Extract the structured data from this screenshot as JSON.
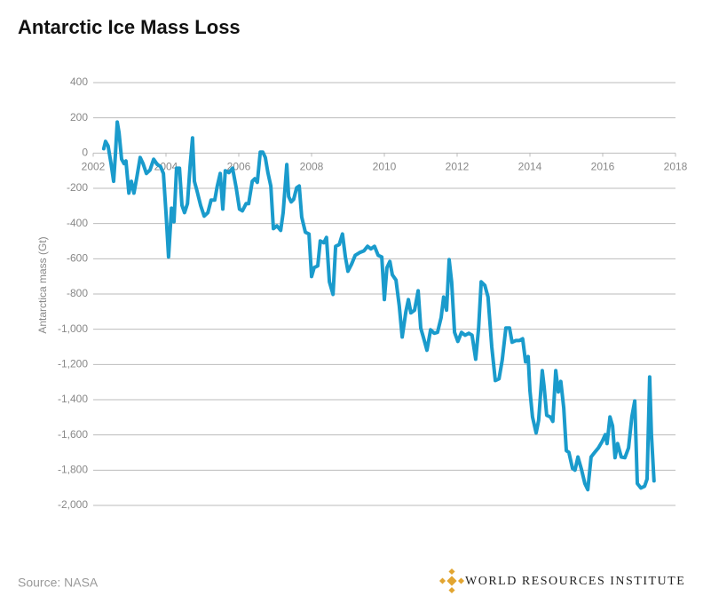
{
  "chart_data": {
    "type": "line",
    "title": "Antarctic Ice Mass Loss",
    "y_label": "Antarctica mass (Gt)",
    "source": "Source: NASA",
    "publisher": "WORLD RESOURCES INSTITUTE",
    "xlim": [
      2002,
      2018
    ],
    "xticks": [
      2002,
      2004,
      2006,
      2008,
      2010,
      2012,
      2014,
      2016,
      2018
    ],
    "ylim": [
      -2000,
      400
    ],
    "yticks": [
      400,
      200,
      0,
      -200,
      -400,
      -600,
      -800,
      {
        "value": -1000,
        "label": "-1,000"
      },
      {
        "value": -1200,
        "label": "-1,200"
      },
      {
        "value": -1400,
        "label": "-1,400"
      },
      {
        "value": -1600,
        "label": "-1,600"
      },
      {
        "value": -1800,
        "label": "-1,800"
      },
      {
        "value": -2000,
        "label": "-2,000"
      }
    ],
    "grid": true,
    "series": [
      {
        "name": "Antarctica mass",
        "color": "#1a9bcc",
        "x": [
          2002.29,
          2002.34,
          2002.41,
          2002.49,
          2002.56,
          2002.61,
          2002.66,
          2002.71,
          2002.78,
          2002.85,
          2002.9,
          2002.98,
          2003.05,
          2003.12,
          2003.2,
          2003.29,
          2003.37,
          2003.46,
          2003.56,
          2003.66,
          2003.76,
          2003.85,
          2003.93,
          2004.0,
          2004.07,
          2004.15,
          2004.22,
          2004.29,
          2004.37,
          2004.44,
          2004.51,
          2004.59,
          2004.66,
          2004.73,
          2004.78,
          2004.85,
          2004.95,
          2005.05,
          2005.15,
          2005.24,
          2005.34,
          2005.41,
          2005.49,
          2005.56,
          2005.63,
          2005.73,
          2005.83,
          2005.93,
          2006.02,
          2006.1,
          2006.2,
          2006.27,
          2006.37,
          2006.44,
          2006.51,
          2006.59,
          2006.66,
          2006.73,
          2006.8,
          2006.88,
          2006.95,
          2007.05,
          2007.15,
          2007.22,
          2007.32,
          2007.37,
          2007.44,
          2007.51,
          2007.59,
          2007.66,
          2007.73,
          2007.83,
          2007.93,
          2008.0,
          2008.07,
          2008.17,
          2008.24,
          2008.34,
          2008.41,
          2008.49,
          2008.59,
          2008.66,
          2008.76,
          2008.85,
          2008.93,
          2009.0,
          2009.1,
          2009.2,
          2009.32,
          2009.44,
          2009.54,
          2009.63,
          2009.73,
          2009.83,
          2009.93,
          2010.0,
          2010.07,
          2010.15,
          2010.22,
          2010.32,
          2010.41,
          2010.49,
          2010.59,
          2010.66,
          2010.73,
          2010.83,
          2010.93,
          2011.0,
          2011.07,
          2011.17,
          2011.27,
          2011.37,
          2011.46,
          2011.56,
          2011.63,
          2011.71,
          2011.78,
          2011.85,
          2011.93,
          2012.02,
          2012.12,
          2012.22,
          2012.32,
          2012.41,
          2012.51,
          2012.59,
          2012.66,
          2012.76,
          2012.85,
          2012.95,
          2013.05,
          2013.15,
          2013.24,
          2013.34,
          2013.44,
          2013.51,
          2013.61,
          2013.71,
          2013.8,
          2013.88,
          2013.95,
          2014.0,
          2014.07,
          2014.17,
          2014.24,
          2014.34,
          2014.39,
          2014.46,
          2014.56,
          2014.63,
          2014.71,
          2014.78,
          2014.85,
          2014.93,
          2015.0,
          2015.07,
          2015.17,
          2015.24,
          2015.32,
          2015.41,
          2015.51,
          2015.59,
          2015.68,
          2015.78,
          2015.88,
          2015.98,
          2016.07,
          2016.12,
          2016.2,
          2016.27,
          2016.34,
          2016.41,
          2016.51,
          2016.61,
          2016.71,
          2016.8,
          2016.88,
          2016.95,
          2017.05,
          2017.15,
          2017.22,
          2017.29,
          2017.34,
          2017.41
        ],
        "values": [
          25,
          66,
          40,
          -60,
          -160,
          -10,
          176,
          116,
          -35,
          -60,
          -45,
          -227,
          -160,
          -227,
          -136,
          -25,
          -60,
          -116,
          -96,
          -35,
          -65,
          -76,
          -116,
          -338,
          -590,
          -313,
          -390,
          -86,
          -86,
          -297,
          -338,
          -287,
          -76,
          86,
          -160,
          -212,
          -297,
          -358,
          -338,
          -267,
          -267,
          -187,
          -116,
          -318,
          -100,
          -111,
          -86,
          -197,
          -318,
          -328,
          -287,
          -287,
          -160,
          -146,
          -166,
          5,
          5,
          -25,
          -111,
          -187,
          -429,
          -413,
          -439,
          -338,
          -65,
          -247,
          -277,
          -262,
          -197,
          -187,
          -363,
          -449,
          -459,
          -701,
          -650,
          -640,
          -499,
          -509,
          -479,
          -731,
          -802,
          -529,
          -519,
          -459,
          -590,
          -671,
          -630,
          -580,
          -565,
          -555,
          -529,
          -544,
          -529,
          -580,
          -590,
          -832,
          -650,
          -615,
          -691,
          -721,
          -867,
          -1044,
          -902,
          -832,
          -907,
          -892,
          -782,
          -993,
          -1044,
          -1119,
          -1003,
          -1023,
          -1018,
          -933,
          -817,
          -892,
          -605,
          -731,
          -1018,
          -1069,
          -1018,
          -1034,
          -1023,
          -1034,
          -1170,
          -993,
          -731,
          -751,
          -817,
          -1099,
          -1291,
          -1281,
          -1175,
          -993,
          -993,
          -1074,
          -1064,
          -1064,
          -1054,
          -1185,
          -1155,
          -1347,
          -1498,
          -1588,
          -1518,
          -1235,
          -1326,
          -1488,
          -1498,
          -1523,
          -1235,
          -1356,
          -1296,
          -1447,
          -1689,
          -1699,
          -1790,
          -1800,
          -1725,
          -1790,
          -1876,
          -1911,
          -1725,
          -1699,
          -1674,
          -1639,
          -1598,
          -1649,
          -1498,
          -1548,
          -1729,
          -1649,
          -1725,
          -1729,
          -1674,
          -1498,
          -1407,
          -1876,
          -1901,
          -1891,
          -1850,
          -1271,
          -1598,
          -1861
        ]
      }
    ]
  }
}
